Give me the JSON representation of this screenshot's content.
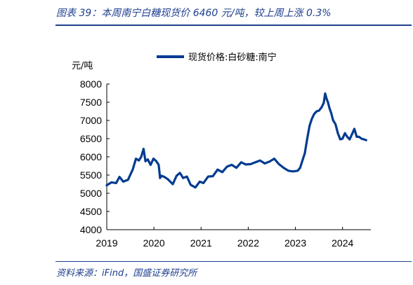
{
  "header": {
    "figure_title": "图表 39：本周南宁白糖现货价 6460 元/吨，较上周上涨 0.3%"
  },
  "footer": {
    "source": "资料来源：iFind，国盛证券研究所"
  },
  "colors": {
    "series": "#003b91",
    "title": "#1f3f8f",
    "rule": "#1f3f8f"
  },
  "chart_data": {
    "type": "line",
    "title": "",
    "xlabel": "",
    "ylabel": "元/吨",
    "ylim": [
      4000,
      8000
    ],
    "yticks": [
      4000,
      4500,
      5000,
      5500,
      6000,
      6500,
      7000,
      7500,
      8000
    ],
    "xlim": [
      2019,
      2024.6
    ],
    "xticks": [
      2019,
      2020,
      2021,
      2022,
      2023,
      2024
    ],
    "legend": "top-center",
    "grid": false,
    "series": [
      {
        "name": "现货价格:白砂糖:南宁",
        "x": [
          2019.0,
          2019.1,
          2019.2,
          2019.27,
          2019.35,
          2019.45,
          2019.55,
          2019.62,
          2019.68,
          2019.73,
          2019.78,
          2019.82,
          2019.87,
          2019.93,
          2019.99,
          2020.05,
          2020.1,
          2020.13,
          2020.16,
          2020.22,
          2020.3,
          2020.4,
          2020.48,
          2020.55,
          2020.62,
          2020.7,
          2020.78,
          2020.88,
          2020.97,
          2021.05,
          2021.15,
          2021.25,
          2021.35,
          2021.45,
          2021.55,
          2021.65,
          2021.75,
          2021.85,
          2021.95,
          2022.05,
          2022.15,
          2022.25,
          2022.35,
          2022.45,
          2022.55,
          2022.65,
          2022.75,
          2022.85,
          2022.95,
          2023.05,
          2023.1,
          2023.15,
          2023.2,
          2023.25,
          2023.3,
          2023.35,
          2023.4,
          2023.45,
          2023.5,
          2023.55,
          2023.6,
          2023.63,
          2023.66,
          2023.69,
          2023.72,
          2023.76,
          2023.8,
          2023.85,
          2023.9,
          2023.95,
          2024.0,
          2024.05,
          2024.1,
          2024.15,
          2024.2,
          2024.25,
          2024.3,
          2024.35,
          2024.4,
          2024.45,
          2024.5
        ],
        "y": [
          5220,
          5300,
          5280,
          5450,
          5320,
          5370,
          5650,
          5950,
          5900,
          6000,
          6220,
          5880,
          5930,
          5780,
          5950,
          5880,
          5780,
          5420,
          5480,
          5450,
          5380,
          5250,
          5480,
          5560,
          5420,
          5460,
          5230,
          5160,
          5320,
          5280,
          5460,
          5470,
          5650,
          5580,
          5730,
          5780,
          5700,
          5850,
          5790,
          5800,
          5850,
          5900,
          5820,
          5870,
          5950,
          5800,
          5700,
          5620,
          5600,
          5620,
          5700,
          5900,
          6100,
          6500,
          6850,
          7050,
          7180,
          7250,
          7270,
          7350,
          7480,
          7740,
          7600,
          7500,
          7350,
          7200,
          7000,
          6900,
          6650,
          6480,
          6500,
          6650,
          6550,
          6480,
          6620,
          6770,
          6550,
          6550,
          6500,
          6480,
          6460
        ]
      }
    ]
  }
}
